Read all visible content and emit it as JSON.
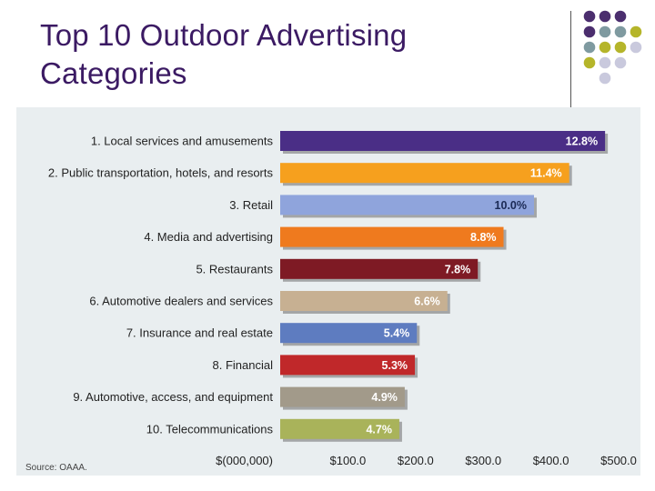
{
  "slide": {
    "title_line1": "Top 10 Outdoor Advertising",
    "title_line2": "Categories"
  },
  "colors": {
    "title": "#3b1a63",
    "dot_purple": "#4b2e6e",
    "dot_teal": "#7f9aa0",
    "dot_olive": "#b5b52a",
    "dot_lavender": "#c9c9dd"
  },
  "chart_data": {
    "type": "bar",
    "orientation": "horizontal",
    "categories": [
      "1. Local services and amusements",
      "2. Public transportation, hotels, and resorts",
      "3. Retail",
      "4. Media and advertising",
      "5. Restaurants",
      "6. Automotive dealers and services",
      "7. Insurance and real estate",
      "8. Financial",
      "9. Automotive, access, and equipment",
      "10. Telecommunications"
    ],
    "values": [
      480,
      427,
      375,
      330,
      292,
      247,
      202,
      199,
      184,
      176
    ],
    "value_labels": [
      "12.8%",
      "11.4%",
      "10.0%",
      "8.8%",
      "7.8%",
      "6.6%",
      "5.4%",
      "5.3%",
      "4.9%",
      "4.7%"
    ],
    "bar_colors": [
      "#4a2e86",
      "#f6a01e",
      "#8fa4dc",
      "#ef7a1e",
      "#7e1a24",
      "#c7b092",
      "#5e7cc0",
      "#c0282a",
      "#a29a8a",
      "#a9b35a"
    ],
    "xlim": [
      0,
      500
    ],
    "xticks": [
      "$(000,000)",
      "$100.0",
      "$200.0",
      "$300.0",
      "$400.0",
      "$500.0"
    ],
    "source": "Source: OAAA."
  }
}
